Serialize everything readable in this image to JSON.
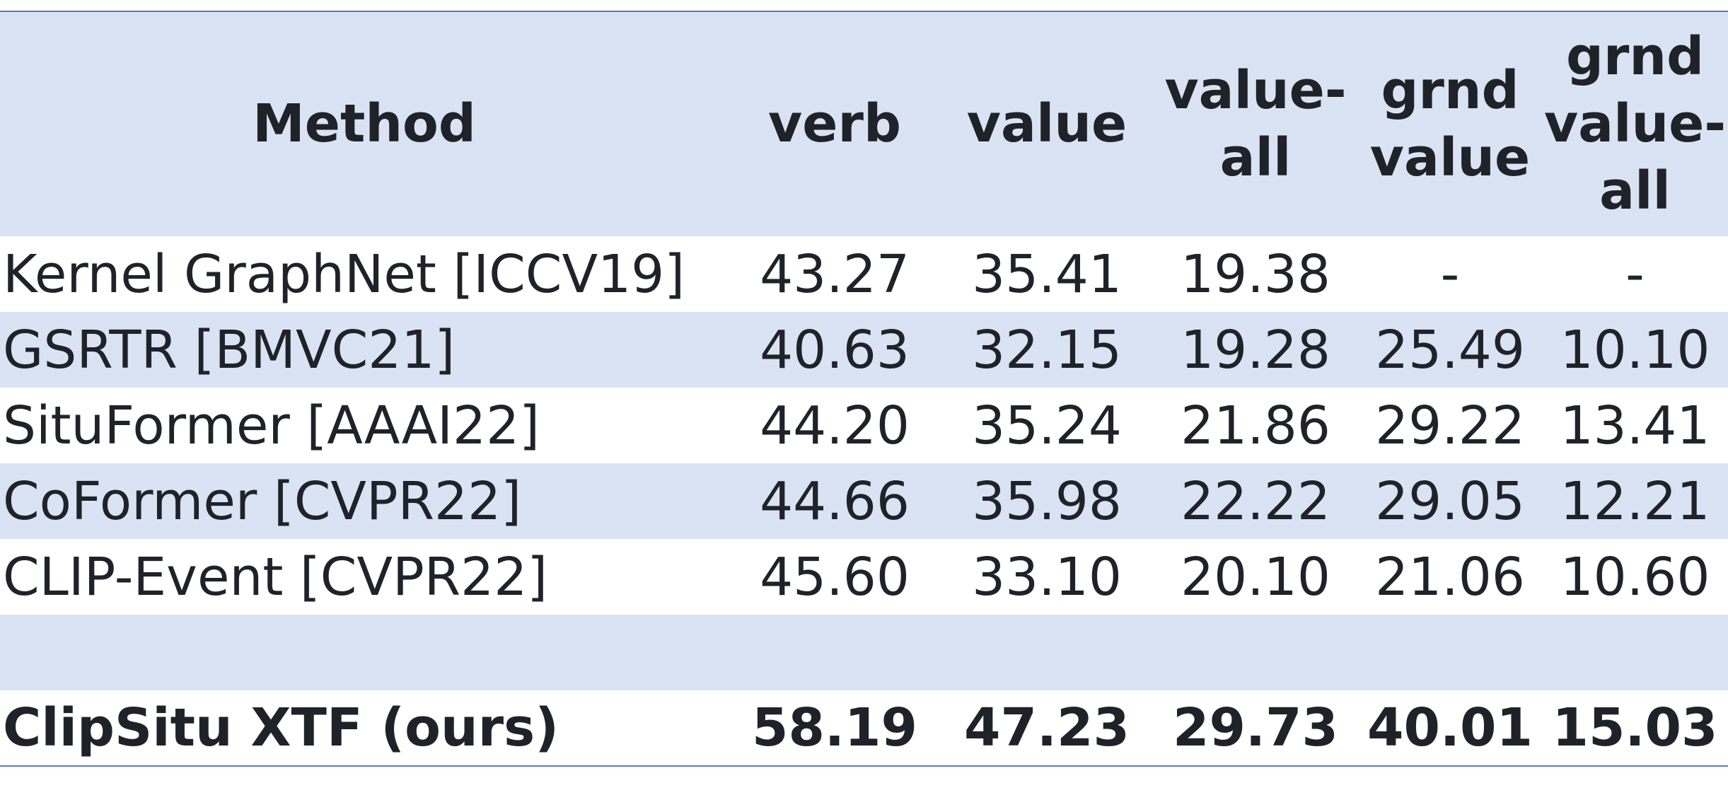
{
  "chart_data": {
    "type": "table",
    "columns": [
      "Method",
      "verb",
      "value",
      "value-all",
      "grnd value",
      "grnd value-all"
    ],
    "header_lines": [
      [
        "Method"
      ],
      [
        "verb"
      ],
      [
        "value"
      ],
      [
        "value-",
        "all"
      ],
      [
        "grnd",
        "value"
      ],
      [
        "grnd",
        "value-",
        "all"
      ]
    ],
    "rows": [
      {
        "method": "Kernel GraphNet [ICCV19]",
        "verb": "43.27",
        "value": "35.41",
        "value_all": "19.38",
        "grnd_value": "-",
        "grnd_value_all": "-"
      },
      {
        "method": "GSRTR [BMVC21]",
        "verb": "40.63",
        "value": "32.15",
        "value_all": "19.28",
        "grnd_value": "25.49",
        "grnd_value_all": "10.10"
      },
      {
        "method": "SituFormer [AAAI22]",
        "verb": "44.20",
        "value": "35.24",
        "value_all": "21.86",
        "grnd_value": "29.22",
        "grnd_value_all": "13.41"
      },
      {
        "method": "CoFormer [CVPR22]",
        "verb": "44.66",
        "value": "35.98",
        "value_all": "22.22",
        "grnd_value": "29.05",
        "grnd_value_all": "12.21"
      },
      {
        "method": "CLIP-Event [CVPR22]",
        "verb": "45.60",
        "value": "33.10",
        "value_all": "20.10",
        "grnd_value": "21.06",
        "grnd_value_all": "10.60"
      },
      {
        "method": "",
        "verb": "",
        "value": "",
        "value_all": "",
        "grnd_value": "",
        "grnd_value_all": ""
      },
      {
        "method": "ClipSitu XTF (ours)",
        "verb": "58.19",
        "value": "47.23",
        "value_all": "29.73",
        "grnd_value": "40.01",
        "grnd_value_all": "15.03"
      }
    ],
    "highlight_row": 6,
    "colors": {
      "header_bg": "#dae3f3",
      "stripe_bg": "#dae3f3",
      "rule": "#5a7bbf",
      "text": "#1f2329"
    }
  }
}
